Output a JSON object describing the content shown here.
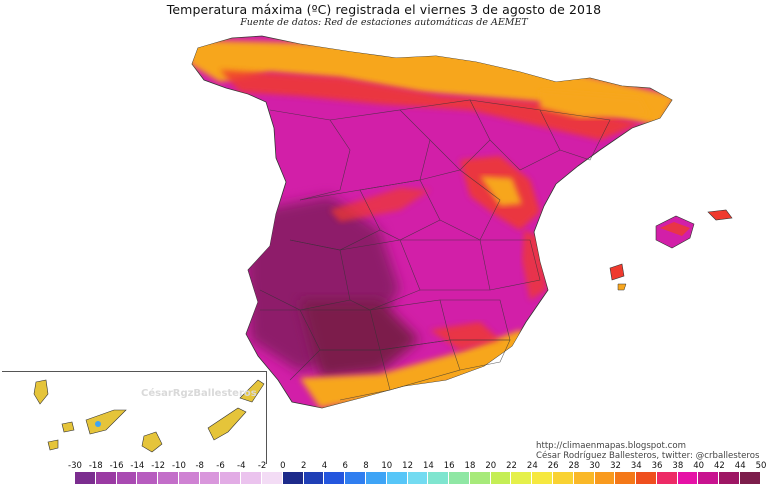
{
  "map": {
    "title": "Temperatura máxima (ºC) registrada el viernes 3 de agosto de 2018",
    "subtitle": "Fuente de datos: Red de estaciones automáticas de AEMET",
    "watermark": "CésarRgzBallesteros",
    "credits": [
      "http://climaenmapas.blogspot.com",
      "César Rodríguez Ballesteros, twitter: @crballesteros"
    ]
  },
  "legend": {
    "ticks": [
      "-30",
      "-18",
      "-16",
      "-14",
      "-12",
      "-10",
      "-8",
      "-6",
      "-4",
      "-2",
      "0",
      "2",
      "4",
      "6",
      "8",
      "10",
      "12",
      "14",
      "16",
      "18",
      "20",
      "22",
      "24",
      "26",
      "28",
      "30",
      "32",
      "34",
      "36",
      "38",
      "40",
      "42",
      "44",
      "50"
    ],
    "colors": [
      "#7b2d8f",
      "#9a3aa3",
      "#a94ab2",
      "#b75cbf",
      "#c36ec9",
      "#cf82d3",
      "#d997dc",
      "#e2ace5",
      "#ebc3ee",
      "#f3dcf5",
      "#1d2a8a",
      "#1f3fb6",
      "#2456de",
      "#2f7ef0",
      "#3ea4f6",
      "#57c6f8",
      "#73dbf1",
      "#7fe5cf",
      "#8fe7a4",
      "#a7ea7a",
      "#c5ee55",
      "#e5f04a",
      "#f6e83f",
      "#f9d232",
      "#fab827",
      "#f99a1e",
      "#f47818",
      "#ef4f1e",
      "#ed2a66",
      "#e611a6",
      "#c8128f",
      "#9e1664",
      "#7c1d4b"
    ]
  },
  "regions_palette": {
    "north_coast": "#f7a61f",
    "north_hot": "#ef3a2e",
    "interior": "#d21fa8",
    "southwest": "#8e1a6b",
    "valle_guadalquivir": "#7c1d4b",
    "canarias": "#e5c43a"
  }
}
